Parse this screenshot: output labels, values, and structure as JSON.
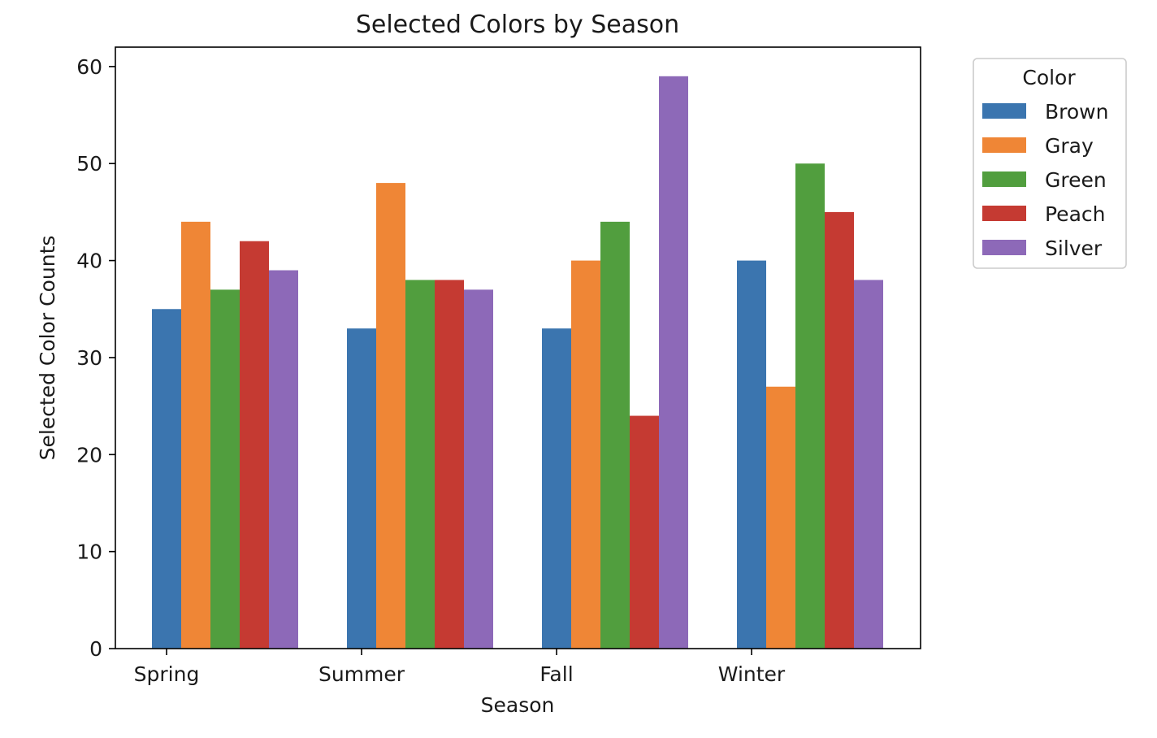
{
  "chart_data": {
    "type": "bar",
    "title": "Selected Colors by Season",
    "xlabel": "Season",
    "ylabel": "Selected Color Counts",
    "categories": [
      "Spring",
      "Summer",
      "Fall",
      "Winter"
    ],
    "ylim": [
      0,
      62
    ],
    "yticks": [
      0,
      10,
      20,
      30,
      40,
      50,
      60
    ],
    "grid": false,
    "legend": {
      "title": "Color",
      "position": "outside-right"
    },
    "series": [
      {
        "name": "Brown",
        "color": "#3b75af",
        "values": [
          35,
          33,
          33,
          40
        ]
      },
      {
        "name": "Gray",
        "color": "#ef8636",
        "values": [
          44,
          48,
          40,
          27
        ]
      },
      {
        "name": "Green",
        "color": "#519e3e",
        "values": [
          37,
          38,
          44,
          50
        ]
      },
      {
        "name": "Peach",
        "color": "#c53a32",
        "values": [
          42,
          38,
          24,
          45
        ]
      },
      {
        "name": "Silver",
        "color": "#8d69b8",
        "values": [
          39,
          37,
          59,
          38
        ]
      }
    ]
  }
}
